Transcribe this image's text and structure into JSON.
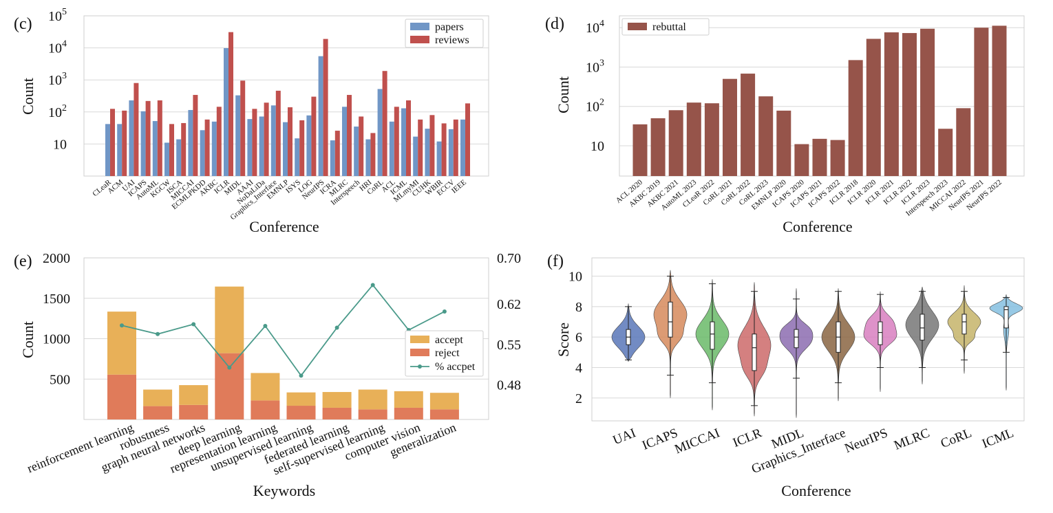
{
  "colors": {
    "papers": "#7096c6",
    "reviews": "#c0504d",
    "rebuttal": "#96544a",
    "accept": "#e8b058",
    "reject": "#e07b5a",
    "pct": "#4a9a8a",
    "grid": "#d8d8d8",
    "frame": "#cfcfcf"
  },
  "chart_data": [
    {
      "panel_label": "(c)",
      "type": "bar",
      "scale": "log",
      "xlabel": "Conference",
      "ylabel": "Count",
      "ylim": [
        1,
        100000
      ],
      "yticks": [
        {
          "v": 10,
          "b": "10",
          "s": ""
        },
        {
          "v": 100,
          "b": "10",
          "s": "2"
        },
        {
          "v": 1000,
          "b": "10",
          "s": "3"
        },
        {
          "v": 10000,
          "b": "10",
          "s": "4"
        },
        {
          "v": 100000,
          "b": "10",
          "s": "5"
        }
      ],
      "legend_position": "top-right",
      "categories": [
        "CLeaR",
        "ACM",
        "UAI",
        "ICAPS",
        "AutoML",
        "KGCW",
        "ISCA",
        "MICCAI",
        "ECMLPKDD",
        "AKBC",
        "ICLR",
        "MIDL",
        "AAAI",
        "NoDaLiDa",
        "Graphics_Interface",
        "EMNLP",
        "ISYS",
        "LOG",
        "NeurIPS",
        "ICRA",
        "MLRC",
        "Interspeech",
        "HRI",
        "CoRL",
        "ACL",
        "ICML",
        "MLmyMI",
        "CUHK",
        "WBIR",
        "ECCV",
        "IEEE"
      ],
      "series": [
        {
          "name": "papers",
          "values": [
            42,
            42,
            230,
            105,
            52,
            11,
            14,
            115,
            27,
            50,
            9800,
            330,
            60,
            72,
            160,
            48,
            15,
            78,
            5500,
            13,
            145,
            35,
            14,
            520,
            50,
            130,
            17,
            30,
            12,
            29,
            58
          ]
        },
        {
          "name": "reviews",
          "values": [
            125,
            110,
            800,
            220,
            230,
            42,
            45,
            340,
            58,
            145,
            31000,
            950,
            125,
            195,
            460,
            140,
            55,
            300,
            19000,
            26,
            340,
            72,
            22,
            1900,
            145,
            230,
            58,
            80,
            44,
            58,
            185
          ]
        }
      ]
    },
    {
      "panel_label": "(d)",
      "type": "bar",
      "scale": "log",
      "xlabel": "Conference",
      "ylabel": "Count",
      "ylim": [
        1.7,
        20000
      ],
      "yticks": [
        {
          "v": 10,
          "b": "10",
          "s": ""
        },
        {
          "v": 100,
          "b": "10",
          "s": "2"
        },
        {
          "v": 1000,
          "b": "10",
          "s": "3"
        },
        {
          "v": 10000,
          "b": "10",
          "s": "4"
        }
      ],
      "legend_position": "top-left",
      "categories": [
        "ACL 2020",
        "AKBC 2019",
        "AKBC 2021",
        "AutoML 2023",
        "CLeaR 2022",
        "CoRL 2021",
        "CoRL 2022",
        "CoRL 2023",
        "EMNLP 2020",
        "ICAPS 2020",
        "ICAPS 2021",
        "ICAPS 2022",
        "ICLR 2018",
        "ICLR 2020",
        "ICLR 2021",
        "ICLR 2022",
        "ICLR 2023",
        "Interspeech 2023",
        "MICCAI 2022",
        "NeurIPS 2021",
        "NeurIPS 2022"
      ],
      "series": [
        {
          "name": "rebuttal",
          "values": [
            35,
            50,
            80,
            125,
            120,
            500,
            680,
            180,
            78,
            11,
            15,
            14,
            1500,
            5200,
            7600,
            7300,
            9400,
            27,
            90,
            10000,
            11200
          ]
        }
      ]
    },
    {
      "panel_label": "(e)",
      "type": "bar",
      "stacked": true,
      "xlabel": "Keywords",
      "ylabel": "Count",
      "ylim": [
        0,
        2000
      ],
      "yticks": [
        500,
        1000,
        1500,
        2000
      ],
      "y2lim": [
        0.42,
        0.7
      ],
      "y2ticks": [
        {
          "v": 0.48,
          "t": "0.48"
        },
        {
          "v": 0.55,
          "t": "0.55"
        },
        {
          "v": 0.62,
          "t": "0.62"
        },
        {
          "v": 0.7,
          "t": "0.70"
        }
      ],
      "legend_position": "center-right",
      "categories": [
        "reinforcement learning",
        "robustness",
        "graph neural networks",
        "deep learning",
        "representation learning",
        "unsupervised learning",
        "federated learning",
        "self-supervised learning",
        "computer vision",
        "generalization"
      ],
      "series": [
        {
          "name": "reject",
          "values": [
            555,
            165,
            180,
            820,
            235,
            170,
            145,
            125,
            145,
            125
          ]
        },
        {
          "name": "accept",
          "values": [
            780,
            205,
            245,
            825,
            340,
            165,
            195,
            245,
            205,
            205
          ]
        },
        {
          "name": "% accpet",
          "axis": "right",
          "values": [
            0.583,
            0.568,
            0.585,
            0.51,
            0.582,
            0.496,
            0.579,
            0.653,
            0.575,
            0.607
          ]
        }
      ]
    },
    {
      "panel_label": "(f)",
      "type": "violin",
      "xlabel": "Conference",
      "ylabel": "Score",
      "ylim": [
        0.5,
        11.2
      ],
      "yticks": [
        2,
        4,
        6,
        8,
        10
      ],
      "categories": [
        "UAI",
        "ICAPS",
        "MICCAI",
        "ICLR",
        "MIDL",
        "Graphics_Interface",
        "NeurIPS",
        "MLRC",
        "CoRL",
        "ICML"
      ],
      "series": [
        {
          "name": "UAI",
          "color": "#5977b8",
          "min": 4.5,
          "q1": 5.5,
          "median": 6.0,
          "q3": 6.5,
          "max": 8.0,
          "low": 4.4,
          "high": 8.2,
          "modes": [
            [
              6.0,
              0.7,
              1.0
            ]
          ]
        },
        {
          "name": "ICAPS",
          "color": "#d68a5c",
          "min": 3.5,
          "q1": 6.0,
          "median": 7.0,
          "q3": 8.3,
          "max": 10.0,
          "low": 2.0,
          "high": 10.4,
          "modes": [
            [
              7.5,
              0.9,
              1.0
            ],
            [
              6.0,
              0.5,
              0.45
            ]
          ]
        },
        {
          "name": "MICCAI",
          "color": "#6aba68",
          "min": 3.0,
          "q1": 5.2,
          "median": 6.2,
          "q3": 7.0,
          "max": 9.5,
          "low": 1.2,
          "high": 9.8,
          "modes": [
            [
              6.2,
              0.9,
              1.0
            ]
          ]
        },
        {
          "name": "ICLR",
          "color": "#cc6a6a",
          "min": 1.5,
          "q1": 3.8,
          "median": 5.3,
          "q3": 6.2,
          "max": 9.0,
          "low": 0.8,
          "high": 9.6,
          "modes": [
            [
              5.5,
              1.1,
              1.0
            ],
            [
              3.8,
              0.6,
              0.35
            ]
          ]
        },
        {
          "name": "MIDL",
          "color": "#8c6cb0",
          "min": 3.3,
          "q1": 5.3,
          "median": 6.0,
          "q3": 6.5,
          "max": 8.5,
          "low": 0.7,
          "high": 9.2,
          "modes": [
            [
              5.8,
              0.6,
              1.0
            ],
            [
              6.6,
              0.4,
              0.5
            ]
          ]
        },
        {
          "name": "Graphics_Interface",
          "color": "#8a6542",
          "min": 3.0,
          "q1": 5.0,
          "median": 6.0,
          "q3": 7.0,
          "max": 9.0,
          "low": 1.8,
          "high": 9.2,
          "modes": [
            [
              6.0,
              0.9,
              1.0
            ]
          ]
        },
        {
          "name": "NeurIPS",
          "color": "#d87fc0",
          "min": 4.0,
          "q1": 5.5,
          "median": 6.3,
          "q3": 7.0,
          "max": 8.8,
          "low": 2.4,
          "high": 9.0,
          "modes": [
            [
              6.0,
              0.5,
              1.0
            ],
            [
              7.0,
              0.5,
              0.8
            ]
          ]
        },
        {
          "name": "MLRC",
          "color": "#777777",
          "min": 4.0,
          "q1": 5.8,
          "median": 6.6,
          "q3": 7.5,
          "max": 9.0,
          "low": 2.9,
          "high": 9.3,
          "modes": [
            [
              6.8,
              0.9,
              1.0
            ]
          ]
        },
        {
          "name": "CoRL",
          "color": "#c5b46a",
          "min": 4.5,
          "q1": 6.2,
          "median": 7.0,
          "q3": 7.5,
          "max": 9.0,
          "low": 3.6,
          "high": 9.4,
          "modes": [
            [
              7.0,
              0.6,
              1.0
            ],
            [
              5.9,
              0.3,
              0.4
            ]
          ]
        },
        {
          "name": "ICML",
          "color": "#85bfe0",
          "min": 5.0,
          "q1": 6.6,
          "median": 7.8,
          "q3": 8.0,
          "max": 8.6,
          "low": 2.5,
          "high": 8.8,
          "modes": [
            [
              7.9,
              0.3,
              1.0
            ],
            [
              6.5,
              0.6,
              0.15
            ]
          ]
        }
      ]
    }
  ]
}
